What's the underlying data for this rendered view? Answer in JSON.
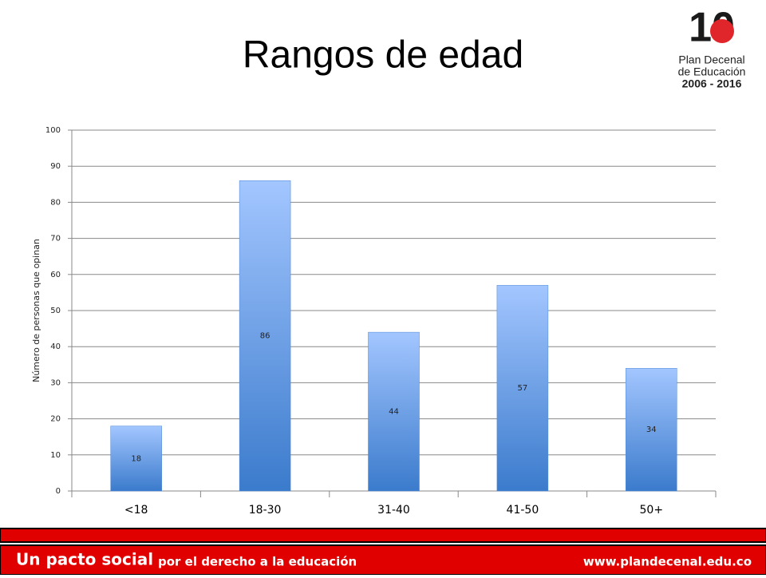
{
  "chart_data": {
    "type": "bar",
    "title": "Rangos de edad",
    "y_label": "Número de personas que opinan",
    "categories": [
      "<18",
      "18-30",
      "31-40",
      "41-50",
      "50+"
    ],
    "values": [
      18,
      86,
      44,
      57,
      34
    ],
    "color": "#4a86d6",
    "ylim": [
      0,
      100
    ],
    "yticks": [
      0,
      10,
      20,
      30,
      40,
      50,
      60,
      70,
      80,
      90,
      100
    ],
    "grid": true
  },
  "logo": {
    "number": "10",
    "lines": [
      "Plan Decenal",
      "de Educación",
      "2006 - 2016"
    ]
  },
  "footer": {
    "slogan_bold": "Un pacto social",
    "slogan": "por el derecho a la educación",
    "url": "www.plandecenal.edu.co"
  }
}
